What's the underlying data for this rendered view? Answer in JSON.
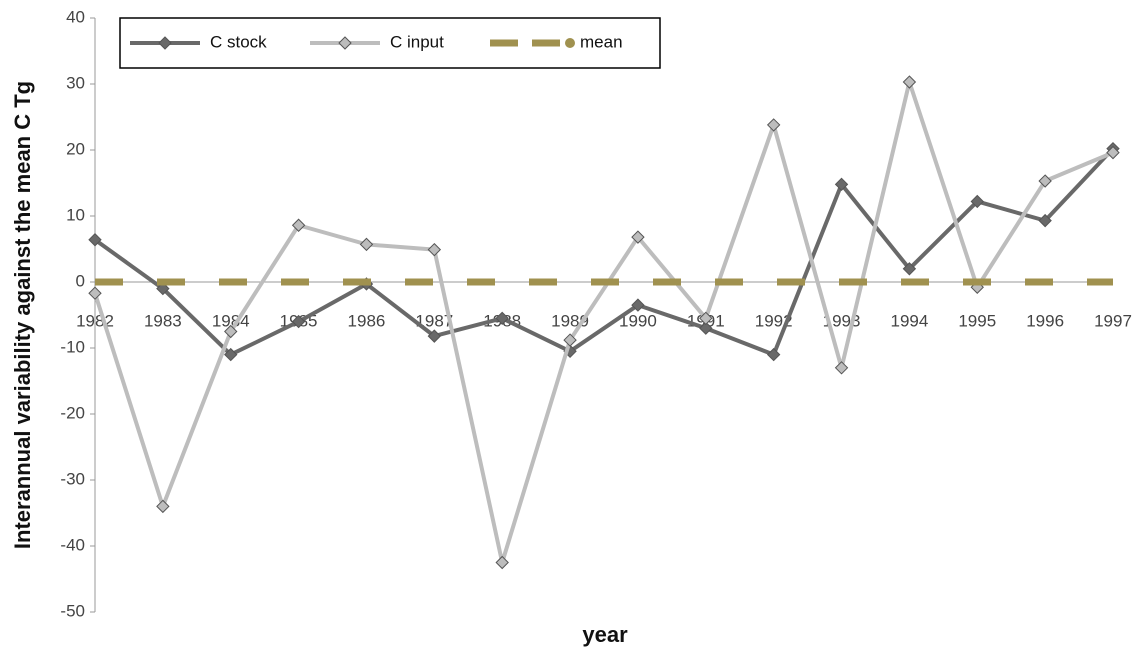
{
  "chart_data": {
    "type": "line",
    "y_label": "Interannual variability against the mean C Tg",
    "x_label": "year",
    "categories": [
      "1982",
      "1983",
      "1984",
      "1985",
      "1986",
      "1987",
      "1988",
      "1989",
      "1990",
      "1991",
      "1992",
      "1993",
      "1994",
      "1995",
      "1996",
      "1997"
    ],
    "series": [
      {
        "name": "C stock",
        "color": "#696969",
        "marker": "diamond",
        "style": "solid",
        "values": [
          6.4,
          -1,
          -11,
          -6,
          -0.3,
          -8.2,
          -5.5,
          -10.5,
          -3.5,
          -7,
          -11,
          14.8,
          2,
          12.2,
          9.3,
          20.2
        ]
      },
      {
        "name": "C input",
        "color": "#bdbdbd",
        "marker": "diamond",
        "style": "solid",
        "values": [
          -1.7,
          -34,
          -7.5,
          8.6,
          5.7,
          4.9,
          -42.5,
          -8.8,
          6.8,
          -5.5,
          23.8,
          -13,
          30.3,
          -0.8,
          15.3,
          19.6
        ]
      },
      {
        "name": "mean",
        "color": "#a0914f",
        "marker": "circle",
        "style": "dashed",
        "values": [
          0,
          0,
          0,
          0,
          0,
          0,
          0,
          0,
          0,
          0,
          0,
          0,
          0,
          0,
          0,
          0
        ]
      }
    ],
    "ylim": [
      -50,
      40
    ],
    "yticks": [
      -50,
      -40,
      -30,
      -20,
      -10,
      0,
      10,
      20,
      30,
      40
    ],
    "grid": false,
    "legend": "upper left"
  }
}
